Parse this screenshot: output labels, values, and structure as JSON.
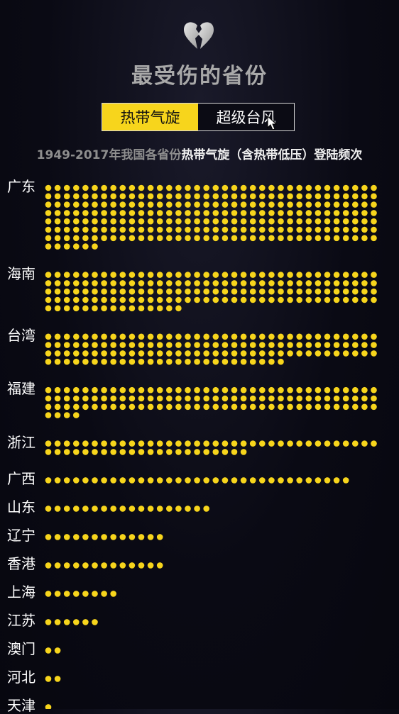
{
  "header": {
    "title": "最受伤的省份",
    "icon": "broken-heart-icon"
  },
  "tabs": [
    {
      "label": "热带气旋",
      "active": true
    },
    {
      "label": "超级台风",
      "active": false
    }
  ],
  "subtitle": {
    "part1": "1949-2017年我国各省份",
    "part2": "热带气旋（含热带低压）登陆频次"
  },
  "colors": {
    "accent": "#f7d51c",
    "background": "#0a0a14",
    "title": "#a9a9a9"
  },
  "chart_data": {
    "type": "bar",
    "encoding": "dot-count",
    "categories": [
      "广东",
      "海南",
      "台湾",
      "福建",
      "浙江",
      "广西",
      "山东",
      "辽宁",
      "香港",
      "上海",
      "江苏",
      "澳门",
      "河北",
      "天津"
    ],
    "values": [
      258,
      159,
      134,
      112,
      58,
      33,
      18,
      13,
      13,
      8,
      6,
      2,
      2,
      1
    ],
    "dots_per_row": 36
  }
}
